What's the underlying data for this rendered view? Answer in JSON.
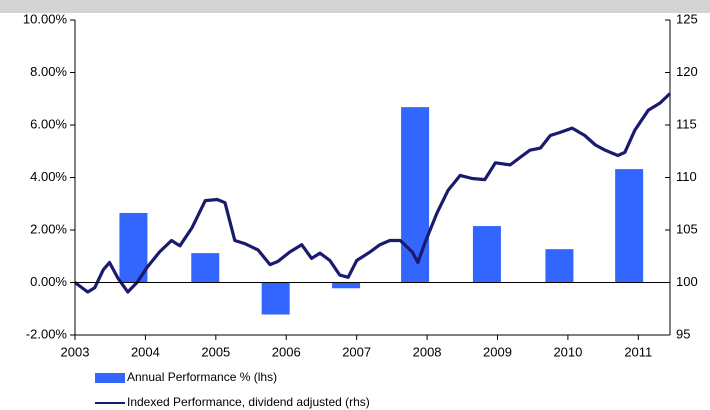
{
  "chart_data": {
    "type": "bar_line",
    "xlim": [
      2003,
      2011.45
    ],
    "xticks": [
      2003,
      2004,
      2005,
      2006,
      2007,
      2008,
      2009,
      2010,
      2011
    ],
    "ylim": [
      -2,
      10
    ],
    "yticks": [
      {
        "value": -2,
        "label": "-2.00%"
      },
      {
        "value": 0,
        "label": "0.00%"
      },
      {
        "value": 2,
        "label": "2.00%"
      },
      {
        "value": 4,
        "label": "4.00%"
      },
      {
        "value": 6,
        "label": "6.00%"
      },
      {
        "value": 8,
        "label": "8.00%"
      },
      {
        "value": 10,
        "label": "10.00%"
      }
    ],
    "y2lim": [
      95,
      125
    ],
    "y2ticks": [
      95,
      100,
      105,
      110,
      115,
      120,
      125
    ],
    "series": [
      {
        "name": "Annual Performance % (lhs)",
        "type": "bar",
        "color": "#3366ff",
        "x": [
          2003.83,
          2004.85,
          2005.85,
          2006.85,
          2007.83,
          2008.85,
          2009.88,
          2010.87
        ],
        "values": [
          2.65,
          1.12,
          -1.22,
          -0.22,
          6.68,
          2.15,
          1.27,
          4.32
        ]
      },
      {
        "name": "Indexed Performance, dividend adjusted  (rhs)",
        "type": "line",
        "axis": "y2",
        "color": "#1a1a6e",
        "x": [
          2003.0,
          2003.18,
          2003.28,
          2003.4,
          2003.49,
          2003.61,
          2003.75,
          2003.88,
          2004.02,
          2004.2,
          2004.37,
          2004.49,
          2004.66,
          2004.85,
          2005.02,
          2005.13,
          2005.27,
          2005.41,
          2005.6,
          2005.77,
          2005.88,
          2006.05,
          2006.22,
          2006.36,
          2006.48,
          2006.62,
          2006.76,
          2006.88,
          2007.0,
          2007.19,
          2007.33,
          2007.47,
          2007.62,
          2007.79,
          2007.87,
          2007.97,
          2008.14,
          2008.3,
          2008.47,
          2008.64,
          2008.82,
          2008.97,
          2009.18,
          2009.32,
          2009.46,
          2009.61,
          2009.75,
          2009.89,
          2010.06,
          2010.24,
          2010.39,
          2010.53,
          2010.71,
          2010.81,
          2010.95,
          2011.14,
          2011.31,
          2011.45
        ],
        "values": [
          100,
          99.1,
          99.5,
          101.2,
          101.9,
          100.4,
          99.1,
          100,
          101.4,
          102.9,
          104,
          103.5,
          105.2,
          107.8,
          107.9,
          107.6,
          104,
          103.7,
          103.1,
          101.7,
          102,
          102.9,
          103.6,
          102.3,
          102.8,
          102.1,
          100.7,
          100.5,
          102.1,
          102.9,
          103.6,
          104,
          104,
          102.9,
          101.9,
          103.8,
          106.6,
          108.8,
          110.2,
          109.9,
          109.8,
          111.4,
          111.2,
          111.9,
          112.6,
          112.8,
          114,
          114.3,
          114.7,
          114,
          113.1,
          112.6,
          112.1,
          112.4,
          114.5,
          116.4,
          117.1,
          118
        ]
      }
    ]
  }
}
